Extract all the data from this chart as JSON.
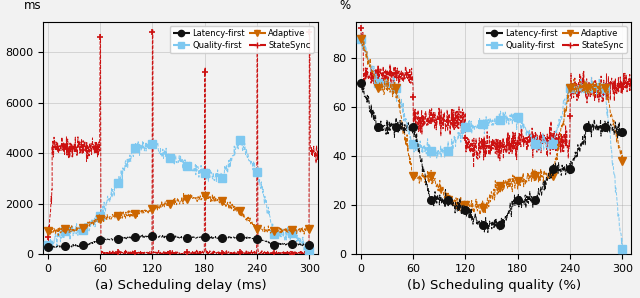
{
  "fig_width": 6.4,
  "fig_height": 2.98,
  "dpi": 100,
  "background_color": "#f2f2f2",
  "subplot_a": {
    "title": "(a) Scheduling delay (ms)",
    "ylabel": "ms",
    "xlim": [
      -5,
      310
    ],
    "ylim": [
      0,
      9200
    ],
    "xticks": [
      0,
      60,
      120,
      180,
      240,
      300
    ],
    "yticks": [
      0,
      2000,
      4000,
      6000,
      8000
    ],
    "latency_first": {
      "x": [
        0,
        20,
        40,
        60,
        80,
        100,
        120,
        140,
        160,
        180,
        200,
        220,
        240,
        260,
        280,
        300
      ],
      "y": [
        280,
        320,
        350,
        550,
        620,
        680,
        720,
        680,
        640,
        680,
        640,
        660,
        620,
        380,
        400,
        350
      ],
      "color": "#111111",
      "marker": "o",
      "markersize": 5.5,
      "linestyle": "--"
    },
    "adaptive": {
      "x": [
        0,
        20,
        40,
        60,
        80,
        100,
        120,
        140,
        160,
        180,
        200,
        220,
        240,
        260,
        280,
        300
      ],
      "y": [
        900,
        980,
        1050,
        1400,
        1500,
        1600,
        1800,
        2000,
        2200,
        2300,
        2100,
        1700,
        1000,
        900,
        950,
        980
      ],
      "color": "#cc6600",
      "marker": "v",
      "markersize": 6,
      "linestyle": "--"
    },
    "quality_first": {
      "x": [
        0,
        20,
        40,
        60,
        80,
        100,
        120,
        140,
        160,
        180,
        200,
        220,
        240,
        260,
        280,
        300
      ],
      "y": [
        380,
        900,
        950,
        1500,
        2800,
        4200,
        4350,
        3800,
        3500,
        3200,
        3000,
        4500,
        3250,
        800,
        850,
        120
      ],
      "color": "#7ec8f0",
      "marker": "s",
      "markersize": 6,
      "linestyle": "--"
    },
    "statesync": {
      "color": "#cc1111",
      "marker": "+",
      "markersize": 5,
      "linestyle": "--"
    }
  },
  "subplot_b": {
    "title": "(b) Scheduling quality (%)",
    "ylabel": "%",
    "xlim": [
      -5,
      310
    ],
    "ylim": [
      0,
      95
    ],
    "xticks": [
      0,
      60,
      120,
      180,
      240,
      300
    ],
    "yticks": [
      0,
      20,
      40,
      60,
      80
    ],
    "latency_first": {
      "x": [
        0,
        20,
        40,
        60,
        80,
        100,
        120,
        140,
        160,
        180,
        200,
        220,
        240,
        260,
        280,
        300
      ],
      "y": [
        70,
        52,
        52,
        52,
        22,
        22,
        18,
        12,
        12,
        22,
        22,
        35,
        35,
        52,
        52,
        50
      ],
      "color": "#111111",
      "marker": "o",
      "markersize": 5.5,
      "linestyle": "--"
    },
    "adaptive": {
      "x": [
        0,
        20,
        40,
        60,
        80,
        100,
        120,
        140,
        160,
        180,
        200,
        220,
        240,
        260,
        280,
        300
      ],
      "y": [
        88,
        68,
        68,
        32,
        32,
        22,
        20,
        19,
        28,
        30,
        32,
        32,
        68,
        68,
        68,
        38
      ],
      "color": "#cc6600",
      "marker": "v",
      "markersize": 6,
      "linestyle": "--"
    },
    "quality_first": {
      "x": [
        0,
        20,
        40,
        60,
        80,
        100,
        120,
        140,
        160,
        180,
        200,
        220,
        240,
        260,
        280,
        300
      ],
      "y": [
        88,
        70,
        68,
        45,
        42,
        42,
        52,
        53,
        55,
        56,
        45,
        45,
        68,
        68,
        68,
        2
      ],
      "color": "#7ec8f0",
      "marker": "s",
      "markersize": 6,
      "linestyle": "--"
    },
    "statesync": {
      "color": "#cc1111",
      "marker": "+",
      "markersize": 5,
      "linestyle": "--"
    }
  },
  "legend": {
    "latency_first_label": "Latency-first",
    "quality_first_label": "Quality-first",
    "adaptive_label": "Adaptive",
    "statesync_label": "StateSync"
  }
}
